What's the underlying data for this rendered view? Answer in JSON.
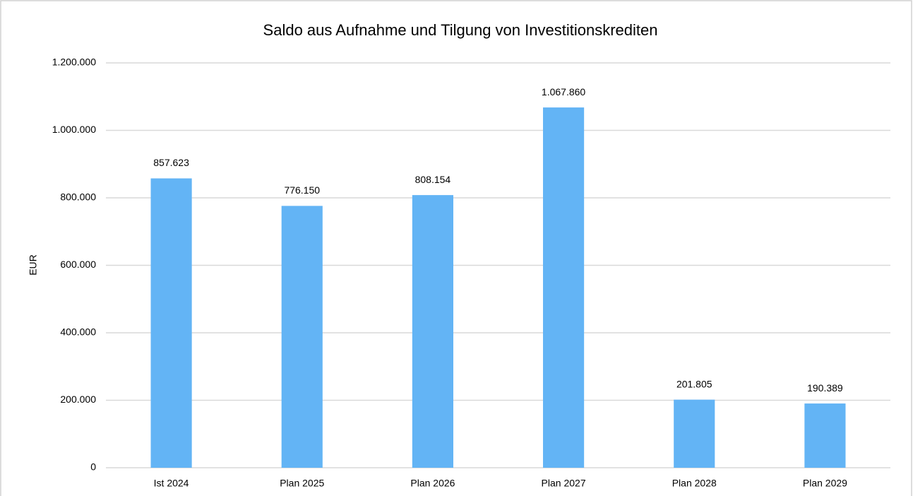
{
  "chart_data": {
    "type": "bar",
    "title": "Saldo aus Aufnahme und Tilgung von Investitionskrediten",
    "y_label": "EUR",
    "categories": [
      "Ist 2024",
      "Plan 2025",
      "Plan 2026",
      "Plan 2027",
      "Plan 2028",
      "Plan 2029"
    ],
    "values": [
      857623,
      776150,
      808154,
      1067860,
      201805,
      190389
    ],
    "value_labels": [
      "857.623",
      "776.150",
      "808.154",
      "1.067.860",
      "201.805",
      "190.389"
    ],
    "color": "#63b4f5",
    "ylim": [
      0,
      1200000
    ],
    "yticks": [
      0,
      {
        "value": 200000,
        "label": "200.000"
      },
      {
        "value": 400000,
        "label": "400.000"
      },
      {
        "value": 600000,
        "label": "600.000"
      },
      {
        "value": 800000,
        "label": "800.000"
      },
      {
        "value": 1000000,
        "label": "1.000.000"
      },
      {
        "value": 1200000,
        "label": "1.200.000"
      }
    ],
    "grid": true
  }
}
